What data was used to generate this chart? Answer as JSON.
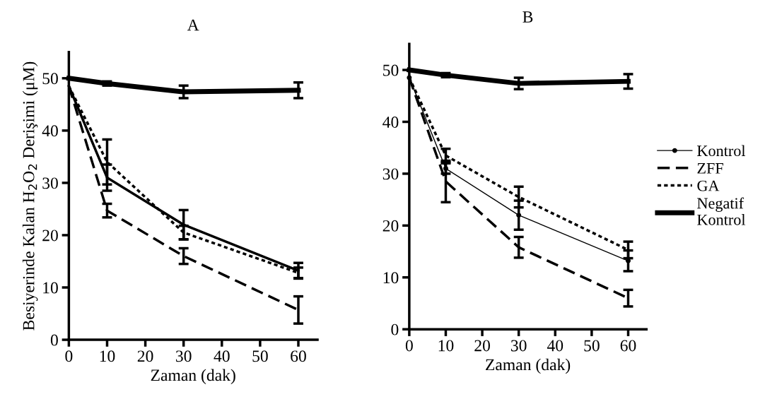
{
  "chart_data": [
    {
      "type": "line",
      "title": "A",
      "xlabel": "Zaman (dak)",
      "ylabel": "Besiyerinde Kalan H$_{2}$O$_{2}$ Derişimi (μM)",
      "x": [
        0,
        10,
        30,
        60
      ],
      "xlim": [
        0,
        65
      ],
      "xticks": [
        0,
        10,
        20,
        30,
        40,
        50,
        60
      ],
      "ylim": [
        0,
        55
      ],
      "yticks": [
        0,
        10,
        20,
        30,
        40,
        50
      ],
      "grid": false,
      "legend": false,
      "series": [
        {
          "color": "#000000",
          "line_style": "solid",
          "values": [
            48.5,
            31,
            22,
            13.2
          ],
          "errors": [
            null,
            2.5,
            2.8,
            1.5
          ]
        },
        {
          "color": "#000000",
          "line_style": "dashed",
          "values": [
            48.5,
            24.7,
            16,
            5.7
          ],
          "errors": [
            null,
            1.3,
            1.5,
            2.6
          ]
        },
        {
          "color": "#000000",
          "line_style": "dotted",
          "values": [
            48.5,
            34,
            20.5,
            12.8
          ],
          "errors": [
            null,
            4.3,
            1.3,
            1
          ]
        },
        {
          "color": "#000000",
          "line_style": "solid",
          "values": [
            50,
            49,
            47.4,
            47.7
          ],
          "errors": [
            null,
            0.4,
            1.2,
            1.5
          ]
        }
      ]
    },
    {
      "type": "line",
      "title": "B",
      "xlabel": "Zaman (dak)",
      "x": [
        0,
        10,
        30,
        60
      ],
      "xlim": [
        0,
        65
      ],
      "xticks": [
        0,
        10,
        20,
        30,
        40,
        50,
        60
      ],
      "ylim": [
        0,
        55
      ],
      "yticks": [
        0,
        10,
        20,
        30,
        40,
        50
      ],
      "grid": false,
      "legend": "right",
      "series": [
        {
          "name": "Kontrol",
          "color": "#000000",
          "line_style": "solid",
          "marker": "circle",
          "values": [
            48.5,
            31,
            22,
            13.2
          ],
          "errors": [
            null,
            1,
            2.8,
            2
          ]
        },
        {
          "name": "ZFF",
          "color": "#000000",
          "line_style": "dashed",
          "values": [
            48.5,
            28.5,
            15.8,
            6
          ],
          "errors": [
            null,
            4,
            2,
            1.6
          ]
        },
        {
          "name": "GA",
          "color": "#000000",
          "line_style": "dotted",
          "values": [
            48.5,
            33.5,
            25.5,
            15.3
          ],
          "errors": [
            null,
            1.3,
            2,
            1.6
          ]
        },
        {
          "name": "Negatif\nKontrol",
          "color": "#000000",
          "line_style": "solid",
          "values": [
            50,
            49,
            47.4,
            47.8
          ],
          "errors": [
            null,
            0.4,
            1.1,
            1.4
          ]
        }
      ]
    }
  ]
}
